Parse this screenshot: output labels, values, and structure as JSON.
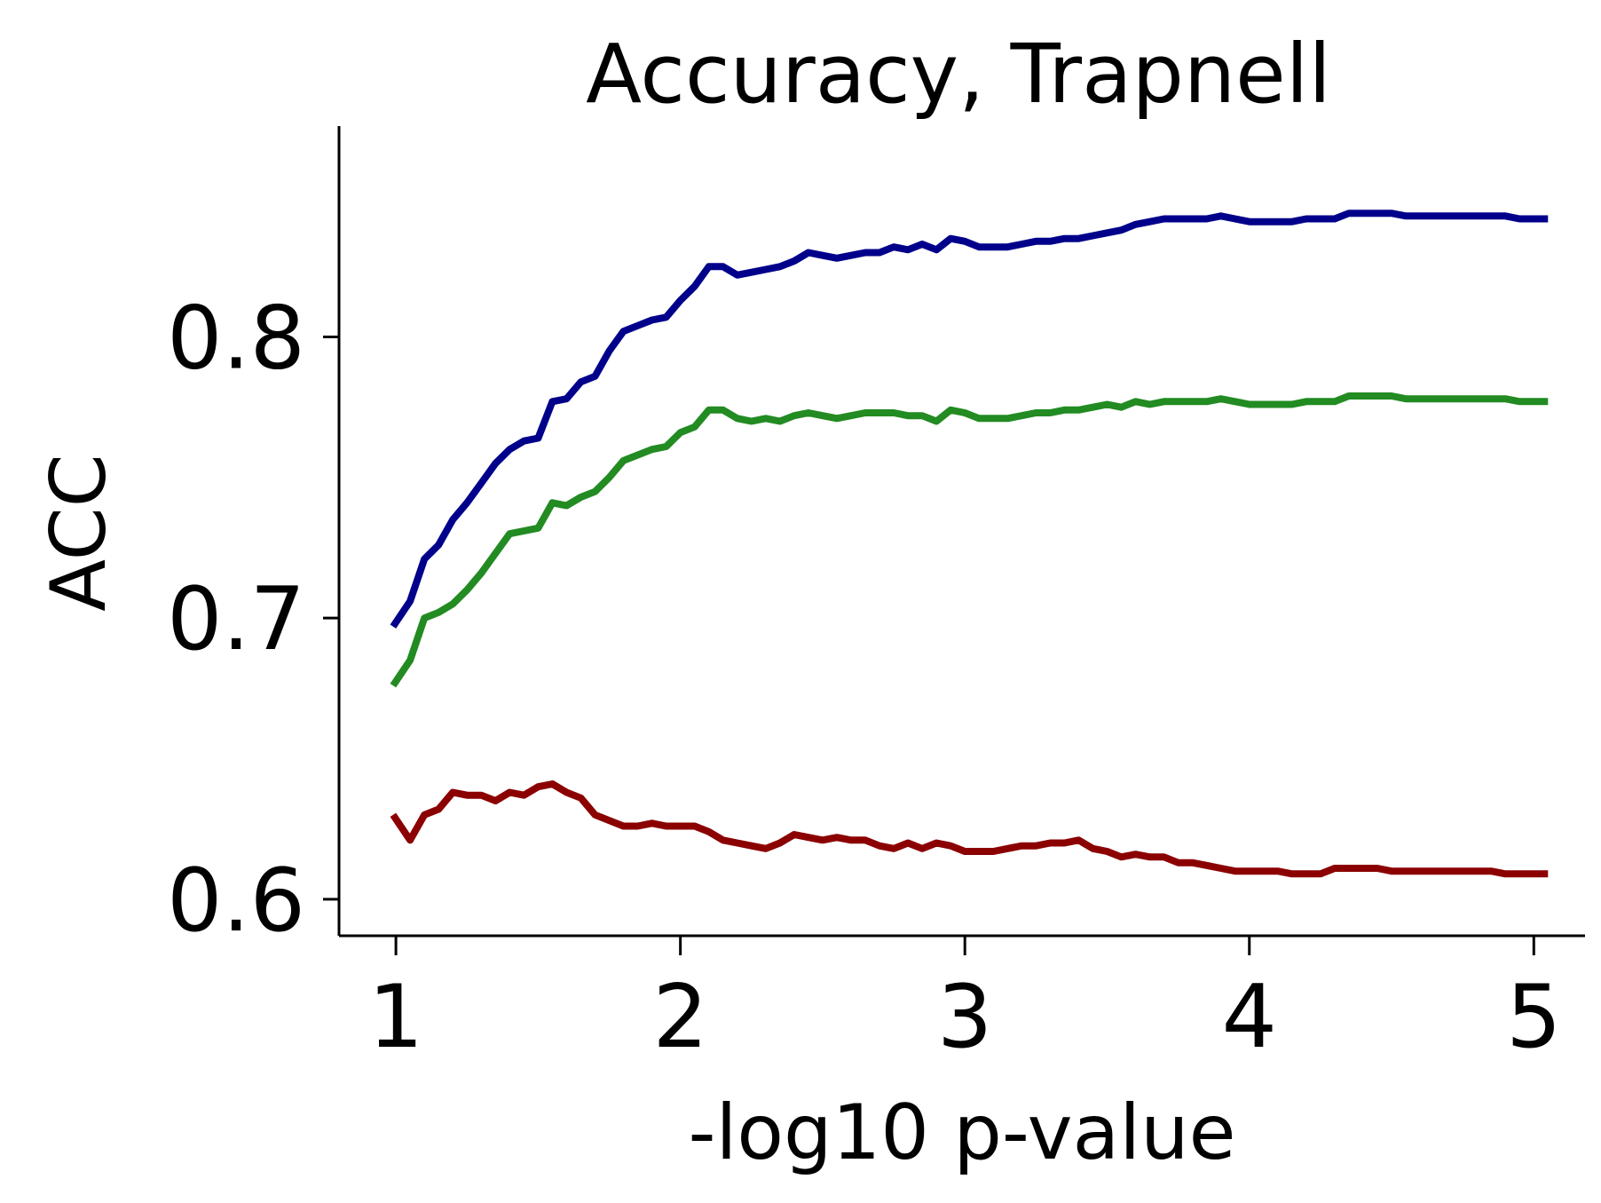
{
  "chart_data": {
    "type": "line",
    "title": "Accuracy, Trapnell",
    "xlabel": "-log10 p-value",
    "ylabel": "ACC",
    "xlim": [
      0.8,
      5.18
    ],
    "ylim": [
      0.587,
      0.875
    ],
    "xticks": [
      1,
      2,
      3,
      4,
      5
    ],
    "xtick_labels": [
      "1",
      "2",
      "3",
      "4",
      "5"
    ],
    "yticks": [
      0.6,
      0.7,
      0.8
    ],
    "ytick_labels": [
      "0.6",
      "0.7",
      "0.8"
    ],
    "grid": false,
    "series": [
      {
        "color": "#00008b",
        "points": [
          [
            0.99,
            0.697
          ],
          [
            1.05,
            0.706
          ],
          [
            1.1,
            0.721
          ],
          [
            1.15,
            0.726
          ],
          [
            1.2,
            0.735
          ],
          [
            1.25,
            0.741
          ],
          [
            1.3,
            0.748
          ],
          [
            1.35,
            0.755
          ],
          [
            1.4,
            0.76
          ],
          [
            1.45,
            0.763
          ],
          [
            1.5,
            0.764
          ],
          [
            1.55,
            0.777
          ],
          [
            1.6,
            0.778
          ],
          [
            1.65,
            0.784
          ],
          [
            1.7,
            0.786
          ],
          [
            1.75,
            0.795
          ],
          [
            1.8,
            0.802
          ],
          [
            1.85,
            0.804
          ],
          [
            1.9,
            0.806
          ],
          [
            1.95,
            0.807
          ],
          [
            2.0,
            0.813
          ],
          [
            2.05,
            0.818
          ],
          [
            2.1,
            0.825
          ],
          [
            2.15,
            0.825
          ],
          [
            2.2,
            0.822
          ],
          [
            2.25,
            0.823
          ],
          [
            2.3,
            0.824
          ],
          [
            2.35,
            0.825
          ],
          [
            2.4,
            0.827
          ],
          [
            2.45,
            0.83
          ],
          [
            2.5,
            0.829
          ],
          [
            2.55,
            0.828
          ],
          [
            2.6,
            0.829
          ],
          [
            2.65,
            0.83
          ],
          [
            2.7,
            0.83
          ],
          [
            2.75,
            0.832
          ],
          [
            2.8,
            0.831
          ],
          [
            2.85,
            0.833
          ],
          [
            2.9,
            0.831
          ],
          [
            2.95,
            0.835
          ],
          [
            3.0,
            0.834
          ],
          [
            3.05,
            0.832
          ],
          [
            3.1,
            0.832
          ],
          [
            3.15,
            0.832
          ],
          [
            3.2,
            0.833
          ],
          [
            3.25,
            0.834
          ],
          [
            3.3,
            0.834
          ],
          [
            3.35,
            0.835
          ],
          [
            3.4,
            0.835
          ],
          [
            3.45,
            0.836
          ],
          [
            3.5,
            0.837
          ],
          [
            3.55,
            0.838
          ],
          [
            3.6,
            0.84
          ],
          [
            3.65,
            0.841
          ],
          [
            3.7,
            0.842
          ],
          [
            3.75,
            0.842
          ],
          [
            3.8,
            0.842
          ],
          [
            3.85,
            0.842
          ],
          [
            3.9,
            0.843
          ],
          [
            3.95,
            0.842
          ],
          [
            4.0,
            0.841
          ],
          [
            4.05,
            0.841
          ],
          [
            4.1,
            0.841
          ],
          [
            4.15,
            0.841
          ],
          [
            4.2,
            0.842
          ],
          [
            4.25,
            0.842
          ],
          [
            4.3,
            0.842
          ],
          [
            4.35,
            0.844
          ],
          [
            4.4,
            0.844
          ],
          [
            4.45,
            0.844
          ],
          [
            4.5,
            0.844
          ],
          [
            4.55,
            0.843
          ],
          [
            4.6,
            0.843
          ],
          [
            4.65,
            0.843
          ],
          [
            4.7,
            0.843
          ],
          [
            4.75,
            0.843
          ],
          [
            4.8,
            0.843
          ],
          [
            4.85,
            0.843
          ],
          [
            4.9,
            0.843
          ],
          [
            4.95,
            0.842
          ],
          [
            5.0,
            0.842
          ],
          [
            5.05,
            0.842
          ]
        ]
      },
      {
        "color": "#228b22",
        "points": [
          [
            0.99,
            0.676
          ],
          [
            1.05,
            0.685
          ],
          [
            1.1,
            0.7
          ],
          [
            1.15,
            0.702
          ],
          [
            1.2,
            0.705
          ],
          [
            1.25,
            0.71
          ],
          [
            1.3,
            0.716
          ],
          [
            1.35,
            0.723
          ],
          [
            1.4,
            0.73
          ],
          [
            1.45,
            0.731
          ],
          [
            1.5,
            0.732
          ],
          [
            1.55,
            0.741
          ],
          [
            1.6,
            0.74
          ],
          [
            1.65,
            0.743
          ],
          [
            1.7,
            0.745
          ],
          [
            1.75,
            0.75
          ],
          [
            1.8,
            0.756
          ],
          [
            1.85,
            0.758
          ],
          [
            1.9,
            0.76
          ],
          [
            1.95,
            0.761
          ],
          [
            2.0,
            0.766
          ],
          [
            2.05,
            0.768
          ],
          [
            2.1,
            0.774
          ],
          [
            2.15,
            0.774
          ],
          [
            2.2,
            0.771
          ],
          [
            2.25,
            0.77
          ],
          [
            2.3,
            0.771
          ],
          [
            2.35,
            0.77
          ],
          [
            2.4,
            0.772
          ],
          [
            2.45,
            0.773
          ],
          [
            2.5,
            0.772
          ],
          [
            2.55,
            0.771
          ],
          [
            2.6,
            0.772
          ],
          [
            2.65,
            0.773
          ],
          [
            2.7,
            0.773
          ],
          [
            2.75,
            0.773
          ],
          [
            2.8,
            0.772
          ],
          [
            2.85,
            0.772
          ],
          [
            2.9,
            0.77
          ],
          [
            2.95,
            0.774
          ],
          [
            3.0,
            0.773
          ],
          [
            3.05,
            0.771
          ],
          [
            3.1,
            0.771
          ],
          [
            3.15,
            0.771
          ],
          [
            3.2,
            0.772
          ],
          [
            3.25,
            0.773
          ],
          [
            3.3,
            0.773
          ],
          [
            3.35,
            0.774
          ],
          [
            3.4,
            0.774
          ],
          [
            3.45,
            0.775
          ],
          [
            3.5,
            0.776
          ],
          [
            3.55,
            0.775
          ],
          [
            3.6,
            0.777
          ],
          [
            3.65,
            0.776
          ],
          [
            3.7,
            0.777
          ],
          [
            3.75,
            0.777
          ],
          [
            3.8,
            0.777
          ],
          [
            3.85,
            0.777
          ],
          [
            3.9,
            0.778
          ],
          [
            3.95,
            0.777
          ],
          [
            4.0,
            0.776
          ],
          [
            4.05,
            0.776
          ],
          [
            4.1,
            0.776
          ],
          [
            4.15,
            0.776
          ],
          [
            4.2,
            0.777
          ],
          [
            4.25,
            0.777
          ],
          [
            4.3,
            0.777
          ],
          [
            4.35,
            0.779
          ],
          [
            4.4,
            0.779
          ],
          [
            4.45,
            0.779
          ],
          [
            4.5,
            0.779
          ],
          [
            4.55,
            0.778
          ],
          [
            4.6,
            0.778
          ],
          [
            4.65,
            0.778
          ],
          [
            4.7,
            0.778
          ],
          [
            4.75,
            0.778
          ],
          [
            4.8,
            0.778
          ],
          [
            4.85,
            0.778
          ],
          [
            4.9,
            0.778
          ],
          [
            4.95,
            0.777
          ],
          [
            5.0,
            0.777
          ],
          [
            5.05,
            0.777
          ]
        ]
      },
      {
        "color": "#8b0000",
        "points": [
          [
            0.99,
            0.63
          ],
          [
            1.05,
            0.621
          ],
          [
            1.1,
            0.63
          ],
          [
            1.15,
            0.632
          ],
          [
            1.2,
            0.638
          ],
          [
            1.25,
            0.637
          ],
          [
            1.3,
            0.637
          ],
          [
            1.35,
            0.635
          ],
          [
            1.4,
            0.638
          ],
          [
            1.45,
            0.637
          ],
          [
            1.5,
            0.64
          ],
          [
            1.55,
            0.641
          ],
          [
            1.6,
            0.638
          ],
          [
            1.65,
            0.636
          ],
          [
            1.7,
            0.63
          ],
          [
            1.75,
            0.628
          ],
          [
            1.8,
            0.626
          ],
          [
            1.85,
            0.626
          ],
          [
            1.9,
            0.627
          ],
          [
            1.95,
            0.626
          ],
          [
            2.0,
            0.626
          ],
          [
            2.05,
            0.626
          ],
          [
            2.1,
            0.624
          ],
          [
            2.15,
            0.621
          ],
          [
            2.2,
            0.62
          ],
          [
            2.25,
            0.619
          ],
          [
            2.3,
            0.618
          ],
          [
            2.35,
            0.62
          ],
          [
            2.4,
            0.623
          ],
          [
            2.45,
            0.622
          ],
          [
            2.5,
            0.621
          ],
          [
            2.55,
            0.622
          ],
          [
            2.6,
            0.621
          ],
          [
            2.65,
            0.621
          ],
          [
            2.7,
            0.619
          ],
          [
            2.75,
            0.618
          ],
          [
            2.8,
            0.62
          ],
          [
            2.85,
            0.618
          ],
          [
            2.9,
            0.62
          ],
          [
            2.95,
            0.619
          ],
          [
            3.0,
            0.617
          ],
          [
            3.05,
            0.617
          ],
          [
            3.1,
            0.617
          ],
          [
            3.15,
            0.618
          ],
          [
            3.2,
            0.619
          ],
          [
            3.25,
            0.619
          ],
          [
            3.3,
            0.62
          ],
          [
            3.35,
            0.62
          ],
          [
            3.4,
            0.621
          ],
          [
            3.45,
            0.618
          ],
          [
            3.5,
            0.617
          ],
          [
            3.55,
            0.615
          ],
          [
            3.6,
            0.616
          ],
          [
            3.65,
            0.615
          ],
          [
            3.7,
            0.615
          ],
          [
            3.75,
            0.613
          ],
          [
            3.8,
            0.613
          ],
          [
            3.85,
            0.612
          ],
          [
            3.9,
            0.611
          ],
          [
            3.95,
            0.61
          ],
          [
            4.0,
            0.61
          ],
          [
            4.05,
            0.61
          ],
          [
            4.1,
            0.61
          ],
          [
            4.15,
            0.609
          ],
          [
            4.2,
            0.609
          ],
          [
            4.25,
            0.609
          ],
          [
            4.3,
            0.611
          ],
          [
            4.35,
            0.611
          ],
          [
            4.4,
            0.611
          ],
          [
            4.45,
            0.611
          ],
          [
            4.5,
            0.61
          ],
          [
            4.55,
            0.61
          ],
          [
            4.6,
            0.61
          ],
          [
            4.65,
            0.61
          ],
          [
            4.7,
            0.61
          ],
          [
            4.75,
            0.61
          ],
          [
            4.8,
            0.61
          ],
          [
            4.85,
            0.61
          ],
          [
            4.9,
            0.609
          ],
          [
            4.95,
            0.609
          ],
          [
            5.0,
            0.609
          ],
          [
            5.05,
            0.609
          ]
        ]
      }
    ]
  }
}
